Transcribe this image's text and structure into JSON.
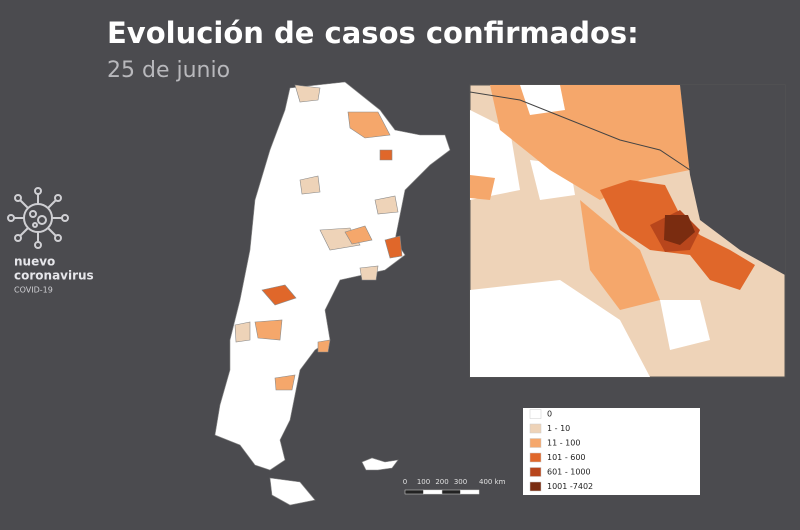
{
  "header": {
    "title": "Evolución de casos confirmados:",
    "subtitle": "25 de junio"
  },
  "logo": {
    "line1": "nuevo",
    "line2": "coronavirus",
    "line3": "COVID-19"
  },
  "legend": {
    "items": [
      {
        "label": "0",
        "color": "#ffffff"
      },
      {
        "label": "1 - 10",
        "color": "#eed3b8"
      },
      {
        "label": "11 - 100",
        "color": "#f5a76b"
      },
      {
        "label": "101 - 600",
        "color": "#e0672a"
      },
      {
        "label": "601 - 1000",
        "color": "#b8461c"
      },
      {
        "label": "1001 -7402",
        "color": "#7a2c10"
      }
    ]
  },
  "scale_bar": {
    "labels": [
      "0",
      "100",
      "200",
      "300",
      "400 km"
    ]
  }
}
